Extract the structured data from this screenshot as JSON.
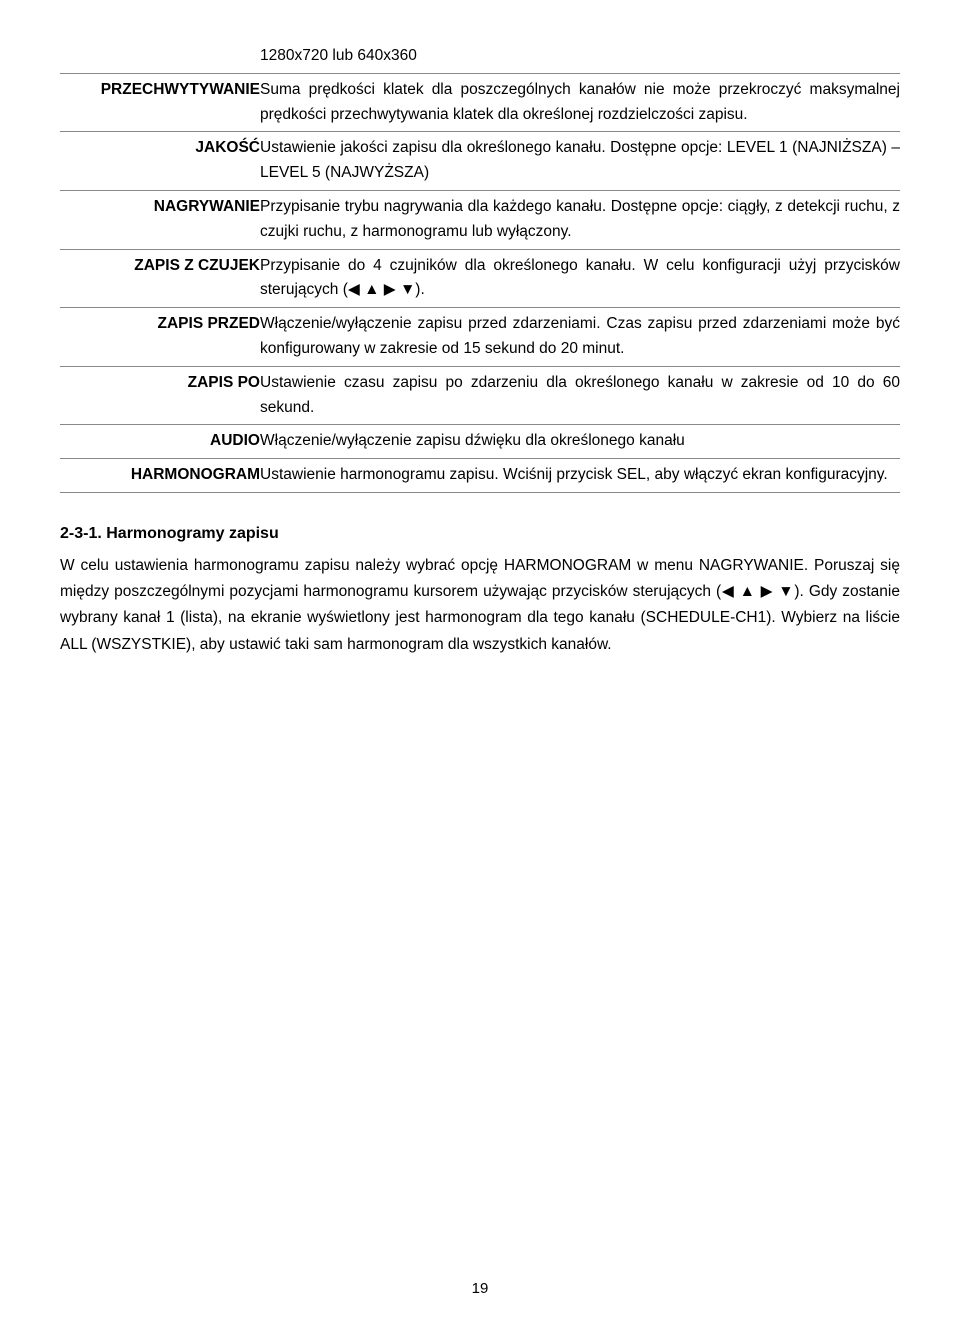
{
  "rows": [
    {
      "label": "",
      "desc": "1280x720 lub 640x360"
    },
    {
      "label": "PRZECHWYTYWANIE",
      "desc": "Suma prędkości klatek dla poszczególnych kanałów nie może przekroczyć maksymalnej prędkości przechwytywania klatek dla określonej rozdzielczości zapisu."
    },
    {
      "label": "JAKOŚĆ",
      "desc": "Ustawienie jakości zapisu dla określonego kanału. Dostępne opcje: LEVEL 1 (NAJNIŻSZA) – LEVEL 5 (NAJWYŻSZA)"
    },
    {
      "label": "NAGRYWANIE",
      "desc": "Przypisanie trybu nagrywania dla każdego kanału. Dostępne opcje: ciągły, z detekcji ruchu, z czujki ruchu, z harmonogramu lub wyłączony."
    },
    {
      "label": "ZAPIS Z CZUJEK",
      "desc": "Przypisanie do 4 czujników dla określonego kanału. W celu konfiguracji użyj przycisków sterujących (◀ ▲ ▶ ▼)."
    },
    {
      "label": "ZAPIS PRZED",
      "desc": "Włączenie/wyłączenie zapisu przed zdarzeniami. Czas zapisu przed zdarzeniami może być konfigurowany w zakresie od 15 sekund do 20 minut."
    },
    {
      "label": "ZAPIS PO",
      "desc": "Ustawienie czasu zapisu po zdarzeniu dla określonego kanału w zakresie od 10 do 60 sekund."
    },
    {
      "label": "AUDIO",
      "desc": "Włączenie/wyłączenie zapisu dźwięku dla określonego kanału"
    },
    {
      "label": "HARMONOGRAM",
      "desc": "Ustawienie harmonogramu zapisu. Wciśnij przycisk SEL, aby włączyć ekran konfiguracyjny."
    }
  ],
  "section": {
    "title": "2-3-1. Harmonogramy zapisu",
    "body": "W celu ustawienia harmonogramu zapisu należy wybrać opcję HARMONOGRAM w menu NAGRYWANIE. Poruszaj się między poszczególnymi pozycjami harmonogramu kursorem używając przycisków sterujących (◀ ▲ ▶ ▼). Gdy zostanie wybrany kanał 1 (lista), na ekranie wyświetlony jest harmonogram dla tego kanału (SCHEDULE-CH1). Wybierz na liście ALL (WSZYSTKIE), aby ustawić taki sam harmonogram dla wszystkich kanałów."
  },
  "pageNumber": "19"
}
